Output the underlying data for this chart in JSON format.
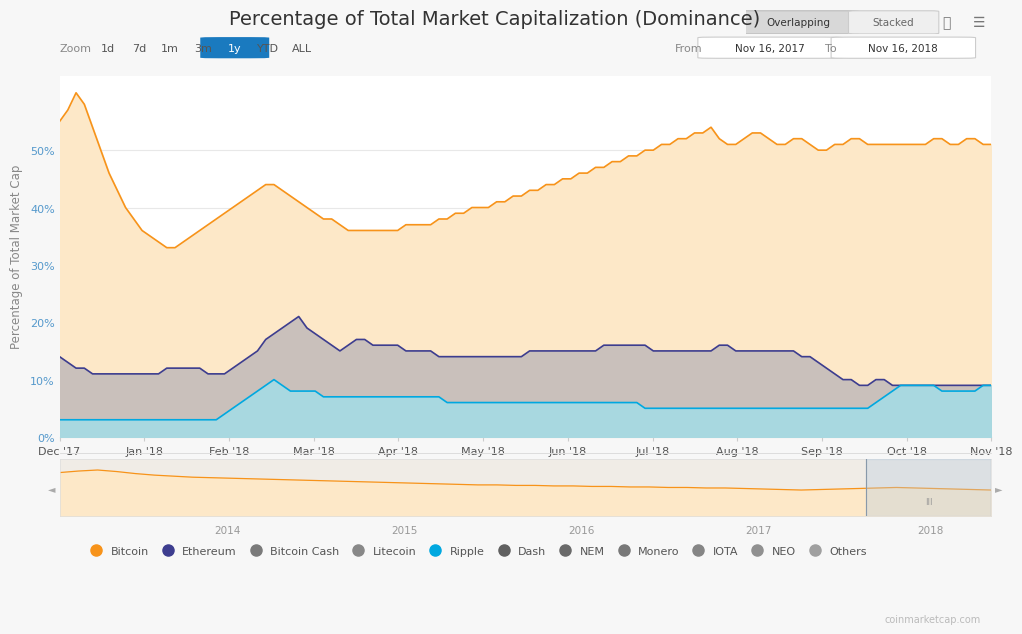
{
  "title": "Percentage of Total Market Capitalization (Dominance)",
  "ylabel": "Percentage of Total Market Cap",
  "bg_color": "#f7f7f7",
  "plot_bg_color": "#ffffff",
  "title_fontsize": 14,
  "axis_label_fontsize": 8.5,
  "tick_fontsize": 8,
  "date_from": "Nov 16, 2017",
  "date_to": "Nov 16, 2018",
  "x_tick_labels": [
    "Dec '17",
    "Jan '18",
    "Feb '18",
    "Mar '18",
    "Apr '18",
    "May '18",
    "Jun '18",
    "Jul '18",
    "Aug '18",
    "Sep '18",
    "Oct '18",
    "Nov '18"
  ],
  "y_tick_labels": [
    "0%",
    "10%",
    "20%",
    "30%",
    "40%",
    "50%"
  ],
  "ylim": [
    0,
    63
  ],
  "btc_color": "#f7931a",
  "btc_fill": "#fde8c8",
  "eth_color": "#3d3d8f",
  "eth_fill": "#c9c0bb",
  "xrp_color": "#00a8e0",
  "xrp_fill": "#a8d8e0",
  "legend_colors": [
    "#f7931a",
    "#3d3d8f",
    "#7a7a7a",
    "#888888",
    "#00a8e0",
    "#606060",
    "#6a6a6a",
    "#787878",
    "#858585",
    "#909090",
    "#a0a0a0"
  ],
  "legend_labels": [
    "Bitcoin",
    "Ethereum",
    "Bitcoin Cash",
    "Litecoin",
    "Ripple",
    "Dash",
    "NEM",
    "Monero",
    "IOTA",
    "NEO",
    "Others"
  ],
  "btc_data": [
    55,
    57,
    60,
    58,
    54,
    50,
    46,
    43,
    40,
    38,
    36,
    35,
    34,
    33,
    33,
    34,
    35,
    36,
    37,
    38,
    39,
    40,
    41,
    42,
    43,
    44,
    44,
    43,
    42,
    41,
    40,
    39,
    38,
    38,
    37,
    36,
    36,
    36,
    36,
    36,
    36,
    36,
    37,
    37,
    37,
    37,
    38,
    38,
    39,
    39,
    40,
    40,
    40,
    41,
    41,
    42,
    42,
    43,
    43,
    44,
    44,
    45,
    45,
    46,
    46,
    47,
    47,
    48,
    48,
    49,
    49,
    50,
    50,
    51,
    51,
    52,
    52,
    53,
    53,
    54,
    52,
    51,
    51,
    52,
    53,
    53,
    52,
    51,
    51,
    52,
    52,
    51,
    50,
    50,
    51,
    51,
    52,
    52,
    51,
    51,
    51,
    51,
    51,
    51,
    51,
    51,
    52,
    52,
    51,
    51,
    52,
    52,
    51,
    51
  ],
  "eth_data": [
    14,
    13,
    12,
    12,
    11,
    11,
    11,
    11,
    11,
    11,
    11,
    11,
    11,
    12,
    12,
    12,
    12,
    12,
    11,
    11,
    11,
    12,
    13,
    14,
    15,
    17,
    18,
    19,
    20,
    21,
    19,
    18,
    17,
    16,
    15,
    16,
    17,
    17,
    16,
    16,
    16,
    16,
    15,
    15,
    15,
    15,
    14,
    14,
    14,
    14,
    14,
    14,
    14,
    14,
    14,
    14,
    14,
    15,
    15,
    15,
    15,
    15,
    15,
    15,
    15,
    15,
    16,
    16,
    16,
    16,
    16,
    16,
    15,
    15,
    15,
    15,
    15,
    15,
    15,
    15,
    16,
    16,
    15,
    15,
    15,
    15,
    15,
    15,
    15,
    15,
    14,
    14,
    13,
    12,
    11,
    10,
    10,
    9,
    9,
    10,
    10,
    9,
    9,
    9,
    9,
    9,
    9,
    9,
    9,
    9,
    9,
    9,
    9,
    9
  ],
  "xrp_data": [
    3,
    3,
    3,
    3,
    3,
    3,
    3,
    3,
    3,
    3,
    3,
    3,
    3,
    3,
    3,
    3,
    3,
    3,
    3,
    3,
    4,
    5,
    6,
    7,
    8,
    9,
    10,
    9,
    8,
    8,
    8,
    8,
    7,
    7,
    7,
    7,
    7,
    7,
    7,
    7,
    7,
    7,
    7,
    7,
    7,
    7,
    7,
    6,
    6,
    6,
    6,
    6,
    6,
    6,
    6,
    6,
    6,
    6,
    6,
    6,
    6,
    6,
    6,
    6,
    6,
    6,
    6,
    6,
    6,
    6,
    6,
    5,
    5,
    5,
    5,
    5,
    5,
    5,
    5,
    5,
    5,
    5,
    5,
    5,
    5,
    5,
    5,
    5,
    5,
    5,
    5,
    5,
    5,
    5,
    5,
    5,
    5,
    5,
    5,
    6,
    7,
    8,
    9,
    9,
    9,
    9,
    9,
    8,
    8,
    8,
    8,
    8,
    9,
    9
  ],
  "nav_btc": [
    85,
    88,
    90,
    87,
    83,
    80,
    78,
    76,
    75,
    74,
    73,
    72,
    71,
    70,
    69,
    68,
    67,
    66,
    65,
    64,
    63,
    62,
    61,
    61,
    60,
    60,
    59,
    59,
    58,
    58,
    57,
    57,
    56,
    56,
    55,
    55,
    54,
    53,
    52,
    51,
    52,
    53,
    54,
    55,
    56,
    55,
    54,
    53,
    52,
    51
  ],
  "nav_years": [
    [
      "2014",
      0.18
    ],
    [
      "2015",
      0.37
    ],
    [
      "2016",
      0.56
    ],
    [
      "2017",
      0.75
    ]
  ]
}
